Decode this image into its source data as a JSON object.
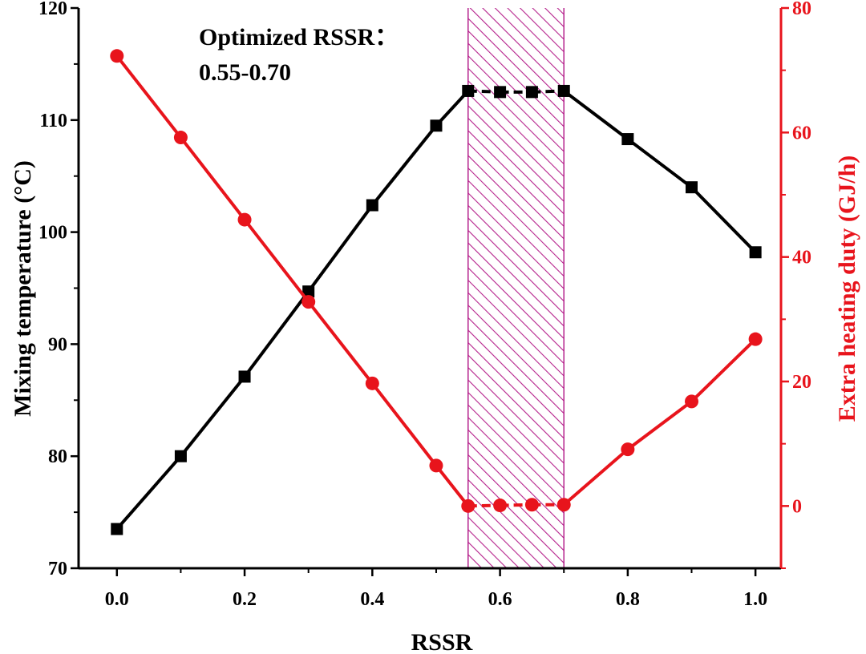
{
  "chart_data": {
    "type": "line",
    "xlabel": "RSSR",
    "ylabel_left": "Mixing temperature (°C)",
    "ylabel_right": "Extra heating duty (GJ/h)",
    "xlim": [
      -0.06,
      1.04
    ],
    "xticks": [
      0.0,
      0.2,
      0.4,
      0.6,
      0.8,
      1.0
    ],
    "xtick_labels": [
      "0.0",
      "0.2",
      "0.4",
      "0.6",
      "0.8",
      "1.0"
    ],
    "ylim_left": [
      70,
      120
    ],
    "yticks_left": [
      70,
      80,
      90,
      100,
      110,
      120
    ],
    "ytick_labels_left": [
      "70",
      "80",
      "90",
      "100",
      "110",
      "120"
    ],
    "ylim_right": [
      -10,
      80
    ],
    "yticks_right": [
      0,
      20,
      40,
      60,
      80
    ],
    "ytick_labels_right": [
      "0",
      "20",
      "40",
      "60",
      "80"
    ],
    "highlight_region": [
      0.55,
      0.7
    ],
    "annotation_line1": "Optimized RSSR：",
    "annotation_line2": "0.55-0.70",
    "series": [
      {
        "name": "Mixing temperature",
        "axis": "left",
        "color": "#000000",
        "marker": "square",
        "x": [
          0.0,
          0.1,
          0.2,
          0.3,
          0.4,
          0.5,
          0.55,
          0.6,
          0.65,
          0.7,
          0.8,
          0.9,
          1.0
        ],
        "y": [
          73.5,
          80.0,
          87.1,
          94.7,
          102.4,
          109.5,
          112.6,
          112.5,
          112.5,
          112.6,
          108.3,
          104.0,
          98.2
        ]
      },
      {
        "name": "Extra heating duty",
        "axis": "right",
        "color": "#e8141c",
        "marker": "circle",
        "x": [
          0.0,
          0.1,
          0.2,
          0.3,
          0.4,
          0.5,
          0.55,
          0.6,
          0.65,
          0.7,
          0.8,
          0.9,
          1.0
        ],
        "y": [
          72.3,
          59.2,
          46.0,
          32.8,
          19.7,
          6.5,
          0.0,
          0.1,
          0.2,
          0.2,
          9.1,
          16.8,
          26.8
        ]
      }
    ]
  }
}
